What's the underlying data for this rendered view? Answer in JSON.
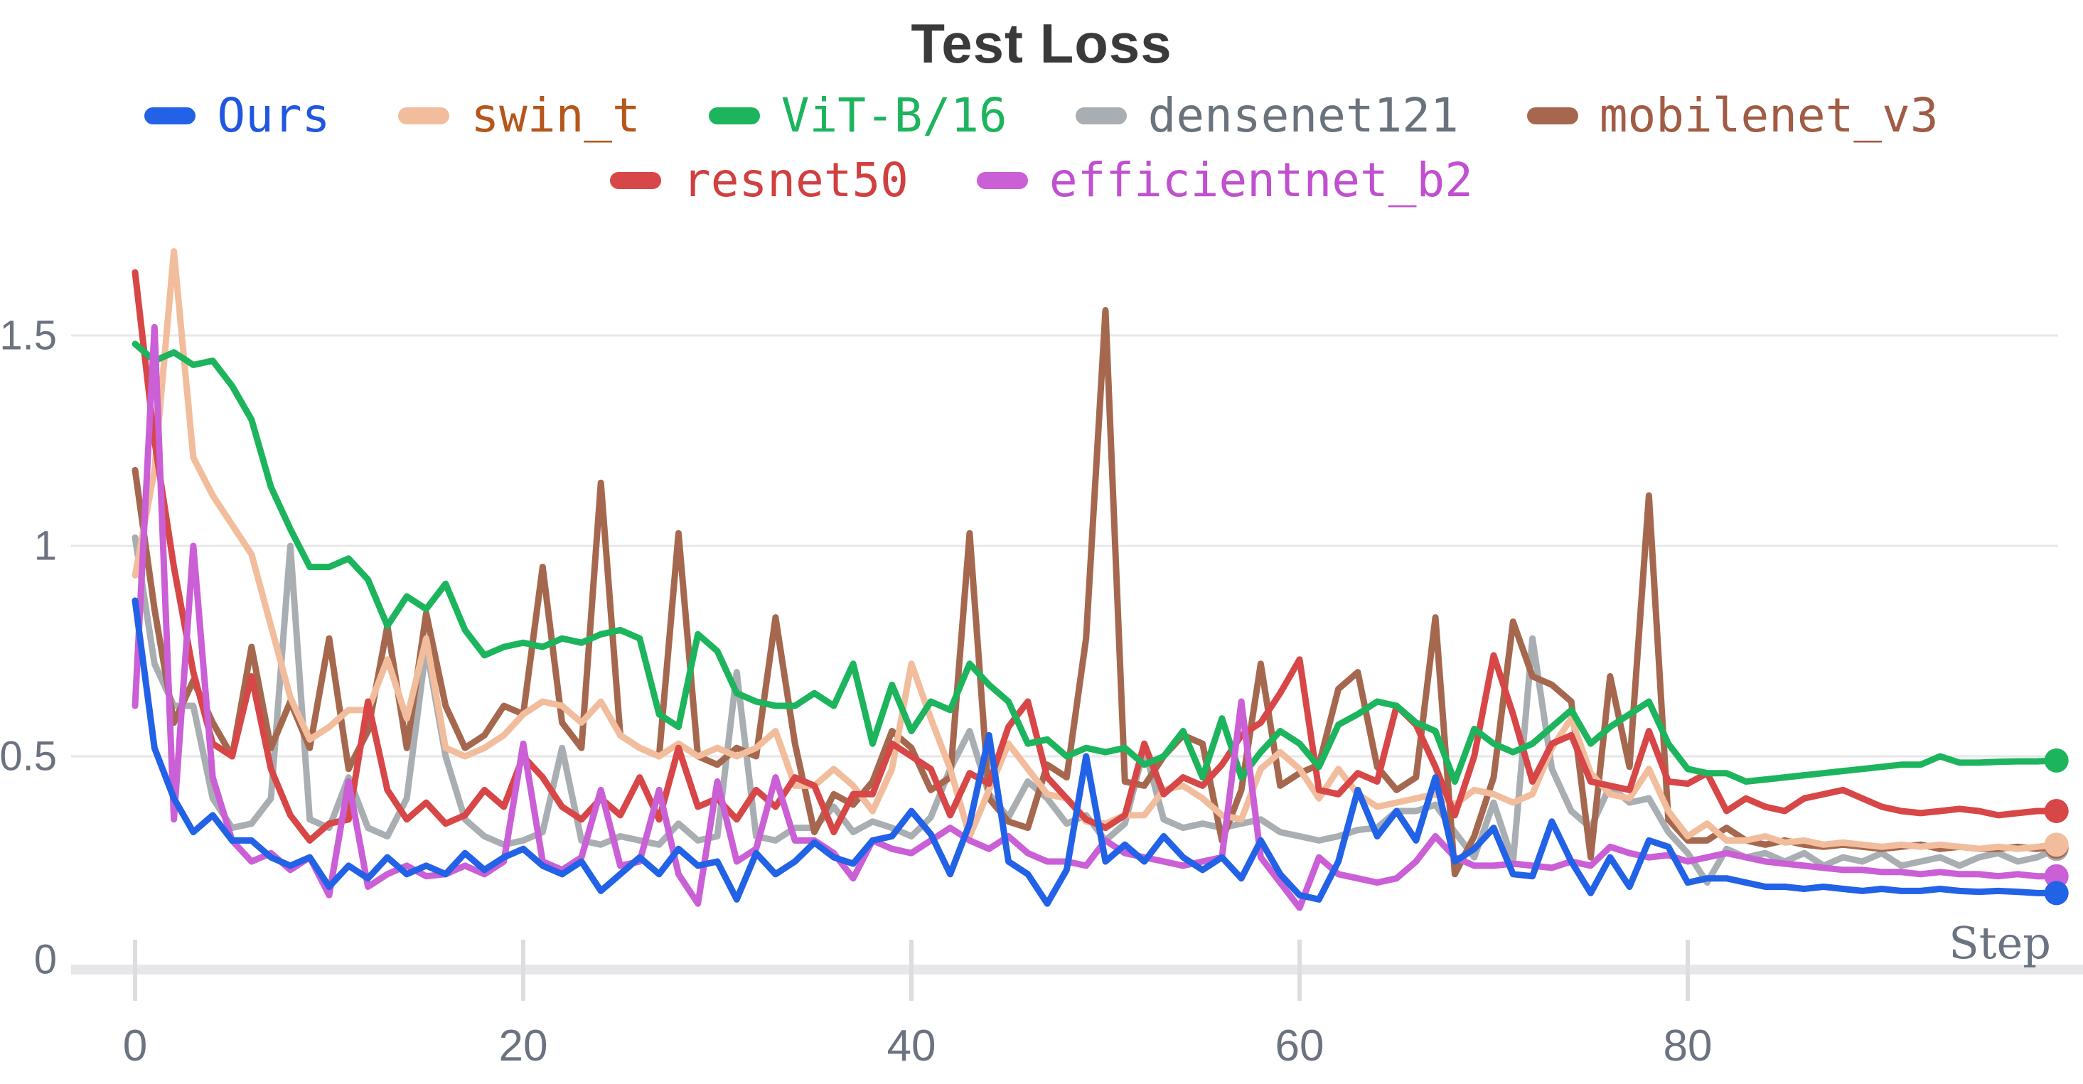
{
  "chart_data": {
    "type": "line",
    "title": "Test Loss",
    "xlabel": "Step",
    "ylabel": "",
    "x_range": [
      0,
      99
    ],
    "x_ticks": [
      0,
      20,
      40,
      60,
      80
    ],
    "y_ticks": [
      0,
      0.5,
      1,
      1.5
    ],
    "y_tick_labels": [
      "0",
      "0.5",
      "1",
      "1.5"
    ],
    "ylim": [
      0,
      1.78
    ],
    "grid": "horizontal",
    "legend_position": "top-center-two-rows",
    "colors": {
      "axis_text": "#6b7280",
      "gridline": "#e7e7e9",
      "baseline_band": "#e7e7e9",
      "title_text": "#3a3a3a",
      "background": "#ffffff"
    },
    "series": [
      {
        "name": "Ours",
        "color": "#2262e6",
        "text_color": "#2157e0",
        "values": [
          0.87,
          0.52,
          0.4,
          0.32,
          0.36,
          0.3,
          0.3,
          0.26,
          0.24,
          0.26,
          0.19,
          0.24,
          0.21,
          0.26,
          0.22,
          0.24,
          0.22,
          0.27,
          0.23,
          0.26,
          0.28,
          0.24,
          0.22,
          0.25,
          0.18,
          0.22,
          0.26,
          0.22,
          0.28,
          0.24,
          0.25,
          0.16,
          0.27,
          0.22,
          0.25,
          0.295,
          0.26,
          0.245,
          0.3,
          0.31,
          0.37,
          0.315,
          0.22,
          0.34,
          0.55,
          0.25,
          0.22,
          0.15,
          0.23,
          0.5,
          0.25,
          0.29,
          0.25,
          0.31,
          0.26,
          0.23,
          0.26,
          0.21,
          0.3,
          0.22,
          0.17,
          0.16,
          0.25,
          0.42,
          0.31,
          0.37,
          0.3,
          0.45,
          0.25,
          0.28,
          0.33,
          0.22,
          0.215,
          0.345,
          0.25,
          0.175,
          0.26,
          0.19,
          0.3,
          0.285,
          0.2,
          0.21,
          0.21,
          0.2,
          0.19,
          0.19,
          0.185,
          0.19,
          0.185,
          0.18,
          0.185,
          0.18,
          0.18,
          0.185,
          0.18,
          0.178,
          0.18,
          0.178,
          0.175,
          0.175
        ]
      },
      {
        "name": "swin_t",
        "color": "#f2bd9c",
        "text_color": "#b4571c",
        "values": [
          0.93,
          1.18,
          1.7,
          1.21,
          1.12,
          1.05,
          0.98,
          0.81,
          0.64,
          0.54,
          0.57,
          0.61,
          0.61,
          0.73,
          0.59,
          0.78,
          0.52,
          0.5,
          0.52,
          0.55,
          0.6,
          0.63,
          0.62,
          0.58,
          0.63,
          0.55,
          0.52,
          0.5,
          0.53,
          0.5,
          0.52,
          0.5,
          0.52,
          0.56,
          0.43,
          0.43,
          0.47,
          0.43,
          0.37,
          0.47,
          0.72,
          0.59,
          0.47,
          0.31,
          0.42,
          0.53,
          0.47,
          0.41,
          0.4,
          0.345,
          0.34,
          0.36,
          0.36,
          0.42,
          0.43,
          0.4,
          0.36,
          0.35,
          0.47,
          0.51,
          0.47,
          0.4,
          0.47,
          0.41,
          0.38,
          0.39,
          0.4,
          0.41,
          0.385,
          0.42,
          0.41,
          0.39,
          0.41,
          0.52,
          0.59,
          0.46,
          0.41,
          0.4,
          0.47,
          0.37,
          0.31,
          0.34,
          0.3,
          0.3,
          0.31,
          0.295,
          0.3,
          0.29,
          0.295,
          0.29,
          0.285,
          0.29,
          0.285,
          0.29,
          0.285,
          0.28,
          0.285,
          0.28,
          0.285,
          0.29
        ]
      },
      {
        "name": "ViT-B/16",
        "color": "#1db45e",
        "text_color": "#1db45e",
        "values": [
          1.48,
          1.44,
          1.46,
          1.43,
          1.44,
          1.38,
          1.3,
          1.14,
          1.04,
          0.95,
          0.95,
          0.97,
          0.92,
          0.81,
          0.88,
          0.85,
          0.91,
          0.8,
          0.74,
          0.76,
          0.77,
          0.76,
          0.78,
          0.77,
          0.79,
          0.8,
          0.78,
          0.6,
          0.57,
          0.79,
          0.75,
          0.65,
          0.63,
          0.62,
          0.62,
          0.65,
          0.62,
          0.72,
          0.53,
          0.67,
          0.56,
          0.63,
          0.61,
          0.72,
          0.67,
          0.63,
          0.53,
          0.54,
          0.5,
          0.52,
          0.51,
          0.52,
          0.48,
          0.5,
          0.56,
          0.45,
          0.59,
          0.45,
          0.51,
          0.56,
          0.53,
          0.475,
          0.575,
          0.6,
          0.63,
          0.62,
          0.58,
          0.56,
          0.44,
          0.565,
          0.53,
          0.51,
          0.53,
          0.57,
          0.61,
          0.53,
          0.57,
          0.6,
          0.63,
          0.53,
          0.47,
          0.46,
          0.46,
          0.44,
          0.445,
          0.45,
          0.455,
          0.46,
          0.465,
          0.47,
          0.475,
          0.48,
          0.48,
          0.5,
          0.485,
          0.485,
          0.487,
          0.488,
          0.488,
          0.49
        ]
      },
      {
        "name": "densenet121",
        "color": "#a8aeb2",
        "text_color": "#6a737c",
        "values": [
          1.02,
          0.72,
          0.62,
          0.62,
          0.4,
          0.33,
          0.34,
          0.4,
          1.0,
          0.35,
          0.33,
          0.45,
          0.33,
          0.31,
          0.4,
          0.76,
          0.5,
          0.35,
          0.31,
          0.29,
          0.3,
          0.32,
          0.52,
          0.3,
          0.29,
          0.31,
          0.3,
          0.29,
          0.34,
          0.3,
          0.31,
          0.7,
          0.31,
          0.3,
          0.33,
          0.33,
          0.38,
          0.32,
          0.345,
          0.33,
          0.31,
          0.355,
          0.47,
          0.56,
          0.41,
          0.355,
          0.44,
          0.4,
          0.34,
          0.36,
          0.3,
          0.34,
          0.52,
          0.35,
          0.33,
          0.34,
          0.33,
          0.34,
          0.35,
          0.32,
          0.31,
          0.3,
          0.31,
          0.325,
          0.33,
          0.37,
          0.37,
          0.385,
          0.32,
          0.26,
          0.39,
          0.25,
          0.78,
          0.47,
          0.37,
          0.33,
          0.43,
          0.39,
          0.4,
          0.32,
          0.27,
          0.2,
          0.28,
          0.26,
          0.27,
          0.25,
          0.27,
          0.24,
          0.26,
          0.25,
          0.27,
          0.24,
          0.25,
          0.26,
          0.24,
          0.26,
          0.27,
          0.25,
          0.26,
          0.28
        ]
      },
      {
        "name": "mobilenet_v3",
        "color": "#a5684e",
        "text_color": "#a05c44",
        "values": [
          1.18,
          0.85,
          0.58,
          0.68,
          0.58,
          0.5,
          0.76,
          0.52,
          0.63,
          0.52,
          0.78,
          0.47,
          0.56,
          0.81,
          0.52,
          0.84,
          0.62,
          0.52,
          0.55,
          0.62,
          0.6,
          0.95,
          0.58,
          0.52,
          1.15,
          0.55,
          0.52,
          0.5,
          1.03,
          0.5,
          0.48,
          0.52,
          0.5,
          0.83,
          0.53,
          0.32,
          0.41,
          0.385,
          0.44,
          0.56,
          0.52,
          0.42,
          0.45,
          1.03,
          0.4,
          0.345,
          0.33,
          0.48,
          0.45,
          0.78,
          1.56,
          0.44,
          0.43,
          0.5,
          0.55,
          0.53,
          0.3,
          0.42,
          0.72,
          0.43,
          0.46,
          0.48,
          0.66,
          0.7,
          0.475,
          0.42,
          0.45,
          0.83,
          0.22,
          0.31,
          0.45,
          0.82,
          0.69,
          0.67,
          0.63,
          0.26,
          0.69,
          0.475,
          1.12,
          0.35,
          0.3,
          0.3,
          0.33,
          0.3,
          0.29,
          0.3,
          0.29,
          0.285,
          0.29,
          0.285,
          0.28,
          0.285,
          0.29,
          0.28,
          0.285,
          0.28,
          0.28,
          0.285,
          0.28,
          0.285
        ]
      },
      {
        "name": "resnet50",
        "color": "#d74747",
        "text_color": "#d04040",
        "values": [
          1.65,
          1.25,
          0.95,
          0.7,
          0.53,
          0.5,
          0.69,
          0.47,
          0.36,
          0.3,
          0.34,
          0.35,
          0.63,
          0.42,
          0.35,
          0.39,
          0.34,
          0.36,
          0.42,
          0.38,
          0.5,
          0.45,
          0.38,
          0.35,
          0.4,
          0.36,
          0.45,
          0.35,
          0.52,
          0.38,
          0.4,
          0.35,
          0.42,
          0.38,
          0.45,
          0.43,
          0.32,
          0.41,
          0.41,
          0.53,
          0.5,
          0.47,
          0.36,
          0.46,
          0.435,
          0.57,
          0.63,
          0.45,
          0.4,
          0.35,
          0.33,
          0.36,
          0.53,
          0.41,
          0.45,
          0.43,
          0.48,
          0.55,
          0.58,
          0.65,
          0.73,
          0.42,
          0.41,
          0.46,
          0.44,
          0.62,
          0.575,
          0.475,
          0.36,
          0.5,
          0.74,
          0.6,
          0.44,
          0.53,
          0.55,
          0.44,
          0.43,
          0.42,
          0.56,
          0.44,
          0.435,
          0.46,
          0.37,
          0.4,
          0.38,
          0.37,
          0.4,
          0.41,
          0.42,
          0.4,
          0.38,
          0.37,
          0.365,
          0.37,
          0.375,
          0.37,
          0.36,
          0.365,
          0.37,
          0.37
        ]
      },
      {
        "name": "efficientnet_b2",
        "color": "#ca5fd6",
        "text_color": "#c050d0",
        "values": [
          0.62,
          1.52,
          0.35,
          1.0,
          0.45,
          0.3,
          0.25,
          0.27,
          0.23,
          0.26,
          0.17,
          0.44,
          0.19,
          0.22,
          0.24,
          0.215,
          0.22,
          0.24,
          0.22,
          0.25,
          0.53,
          0.25,
          0.23,
          0.26,
          0.42,
          0.24,
          0.25,
          0.42,
          0.22,
          0.15,
          0.44,
          0.25,
          0.28,
          0.45,
          0.3,
          0.3,
          0.27,
          0.21,
          0.3,
          0.28,
          0.27,
          0.3,
          0.33,
          0.3,
          0.28,
          0.31,
          0.27,
          0.25,
          0.25,
          0.24,
          0.3,
          0.27,
          0.26,
          0.25,
          0.24,
          0.25,
          0.26,
          0.63,
          0.26,
          0.2,
          0.14,
          0.26,
          0.22,
          0.21,
          0.2,
          0.21,
          0.25,
          0.31,
          0.26,
          0.24,
          0.24,
          0.245,
          0.24,
          0.235,
          0.25,
          0.24,
          0.285,
          0.27,
          0.26,
          0.265,
          0.25,
          0.26,
          0.27,
          0.26,
          0.25,
          0.245,
          0.24,
          0.235,
          0.23,
          0.23,
          0.225,
          0.225,
          0.22,
          0.225,
          0.22,
          0.22,
          0.215,
          0.22,
          0.215,
          0.215
        ]
      }
    ]
  }
}
